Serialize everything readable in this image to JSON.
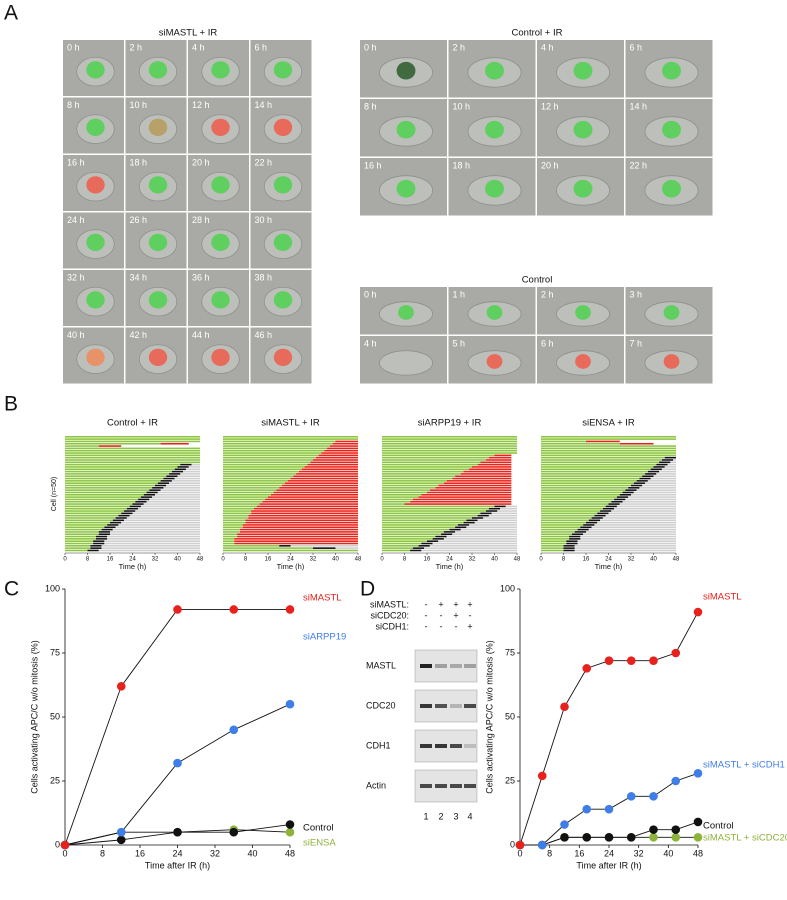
{
  "panel_labels": [
    "A",
    "B",
    "C",
    "D"
  ],
  "panel_a": [
    {
      "title": "siMASTL + IR",
      "frames": [
        "0 h",
        "2 h",
        "4 h",
        "6 h",
        "8 h",
        "10 h",
        "12 h",
        "14 h",
        "16 h",
        "18 h",
        "20 h",
        "22 h",
        "24 h",
        "26 h",
        "28 h",
        "30 h",
        "32 h",
        "34 h",
        "36 h",
        "38 h",
        "40 h",
        "42 h",
        "44 h",
        "46 h"
      ]
    },
    {
      "title": "Control + IR",
      "frames": [
        "0 h",
        "2 h",
        "4 h",
        "6 h",
        "8 h",
        "10 h",
        "12 h",
        "14 h",
        "16 h",
        "18 h",
        "20 h",
        "22 h"
      ]
    },
    {
      "title": "Control",
      "frames": [
        "0 h",
        "1 h",
        "2 h",
        "3 h",
        "4 h",
        "5 h",
        "6 h",
        "7 h"
      ]
    }
  ],
  "panel_b": {
    "xlim": [
      0,
      48
    ],
    "xticks": [
      0,
      8,
      16,
      24,
      32,
      40,
      48
    ],
    "xlabel": "Time (h)",
    "ylabel": "Cell (n=50)",
    "panels": [
      {
        "title": "Control + IR",
        "rows": [
          [
            48
          ],
          [
            48
          ],
          [
            48
          ],
          [
            34,
            44,
            "red"
          ],
          [
            12,
            20,
            "red"
          ],
          [
            48
          ],
          [
            48
          ],
          [
            48
          ],
          [
            48
          ],
          [
            48
          ],
          [
            48
          ],
          [
            48
          ],
          [
            41,
            45,
            "black"
          ],
          [
            40,
            44,
            "black"
          ],
          [
            39,
            43,
            "black"
          ],
          [
            38,
            42,
            "black"
          ],
          [
            37,
            41,
            "black"
          ],
          [
            36,
            40,
            "black"
          ],
          [
            35,
            39,
            "black"
          ],
          [
            34,
            38,
            "black"
          ],
          [
            33,
            37,
            "black"
          ],
          [
            32,
            36,
            "black"
          ],
          [
            31,
            35,
            "black"
          ],
          [
            30,
            34,
            "black"
          ],
          [
            29,
            33,
            "black"
          ],
          [
            28,
            32,
            "black"
          ],
          [
            27,
            31,
            "black"
          ],
          [
            26,
            30,
            "black"
          ],
          [
            25,
            29,
            "black"
          ],
          [
            24,
            28,
            "black"
          ],
          [
            23,
            27,
            "black"
          ],
          [
            22,
            26,
            "black"
          ],
          [
            21,
            25,
            "black"
          ],
          [
            20,
            24,
            "black"
          ],
          [
            19,
            23,
            "black"
          ],
          [
            18,
            22,
            "black"
          ],
          [
            17,
            21,
            "black"
          ],
          [
            16,
            20,
            "black"
          ],
          [
            15,
            19,
            "black"
          ],
          [
            14,
            18,
            "black"
          ],
          [
            13,
            17,
            "black"
          ],
          [
            12,
            16,
            "black"
          ],
          [
            12,
            16,
            "black"
          ],
          [
            11,
            15,
            "black"
          ],
          [
            11,
            15,
            "black"
          ],
          [
            10,
            14,
            "black"
          ],
          [
            10,
            14,
            "black"
          ],
          [
            9,
            13,
            "black"
          ],
          [
            9,
            13,
            "black"
          ],
          [
            8,
            12,
            "black"
          ]
        ]
      },
      {
        "title": "siMASTL + IR",
        "rows": [
          [
            48
          ],
          [
            48
          ],
          [
            40,
            48,
            "red"
          ],
          [
            39,
            48,
            "red"
          ],
          [
            38,
            48,
            "red"
          ],
          [
            37,
            48,
            "red"
          ],
          [
            36,
            48,
            "red"
          ],
          [
            35,
            48,
            "red"
          ],
          [
            34,
            48,
            "red"
          ],
          [
            33,
            48,
            "red"
          ],
          [
            32,
            48,
            "red"
          ],
          [
            31,
            48,
            "red"
          ],
          [
            30,
            48,
            "red"
          ],
          [
            29,
            48,
            "red"
          ],
          [
            28,
            48,
            "red"
          ],
          [
            27,
            48,
            "red"
          ],
          [
            26,
            48,
            "red"
          ],
          [
            25,
            48,
            "red"
          ],
          [
            24,
            48,
            "red"
          ],
          [
            23,
            48,
            "red"
          ],
          [
            22,
            48,
            "red"
          ],
          [
            21,
            48,
            "red"
          ],
          [
            20,
            48,
            "red"
          ],
          [
            19,
            48,
            "red"
          ],
          [
            18,
            48,
            "red"
          ],
          [
            17,
            48,
            "red"
          ],
          [
            16,
            48,
            "red"
          ],
          [
            15,
            48,
            "red"
          ],
          [
            14,
            48,
            "red"
          ],
          [
            13,
            48,
            "red"
          ],
          [
            12,
            48,
            "red"
          ],
          [
            11,
            48,
            "red"
          ],
          [
            10,
            48,
            "red"
          ],
          [
            10,
            48,
            "red"
          ],
          [
            9,
            48,
            "red"
          ],
          [
            9,
            48,
            "red"
          ],
          [
            8,
            48,
            "red"
          ],
          [
            8,
            48,
            "red"
          ],
          [
            7,
            48,
            "red"
          ],
          [
            7,
            48,
            "red"
          ],
          [
            6,
            48,
            "red"
          ],
          [
            6,
            48,
            "red"
          ],
          [
            5,
            48,
            "red"
          ],
          [
            5,
            48,
            "red"
          ],
          [
            4,
            48,
            "red"
          ],
          [
            4,
            48,
            "red"
          ],
          [
            4,
            48,
            "red"
          ],
          [
            20,
            24,
            "black"
          ],
          [
            32,
            40,
            "black"
          ],
          [
            48
          ]
        ]
      },
      {
        "title": "siARPP19 + IR",
        "rows": [
          [
            48
          ],
          [
            48
          ],
          [
            48
          ],
          [
            48
          ],
          [
            48
          ],
          [
            48
          ],
          [
            48
          ],
          [
            48
          ],
          [
            40,
            46,
            "red"
          ],
          [
            38,
            46,
            "red"
          ],
          [
            37,
            46,
            "red"
          ],
          [
            35,
            46,
            "red"
          ],
          [
            34,
            46,
            "red"
          ],
          [
            32,
            46,
            "red"
          ],
          [
            31,
            46,
            "red"
          ],
          [
            29,
            46,
            "red"
          ],
          [
            28,
            46,
            "red"
          ],
          [
            26,
            46,
            "red"
          ],
          [
            25,
            46,
            "red"
          ],
          [
            23,
            46,
            "red"
          ],
          [
            22,
            46,
            "red"
          ],
          [
            20,
            46,
            "red"
          ],
          [
            19,
            46,
            "red"
          ],
          [
            17,
            46,
            "red"
          ],
          [
            16,
            46,
            "red"
          ],
          [
            14,
            46,
            "red"
          ],
          [
            13,
            46,
            "red"
          ],
          [
            11,
            46,
            "red"
          ],
          [
            10,
            46,
            "red"
          ],
          [
            8,
            46,
            "red"
          ],
          [
            40,
            44,
            "black"
          ],
          [
            38,
            42,
            "black"
          ],
          [
            37,
            41,
            "black"
          ],
          [
            35,
            39,
            "black"
          ],
          [
            34,
            38,
            "black"
          ],
          [
            32,
            36,
            "black"
          ],
          [
            30,
            34,
            "black"
          ],
          [
            29,
            33,
            "black"
          ],
          [
            27,
            31,
            "black"
          ],
          [
            26,
            30,
            "black"
          ],
          [
            24,
            28,
            "black"
          ],
          [
            22,
            26,
            "black"
          ],
          [
            21,
            25,
            "black"
          ],
          [
            19,
            23,
            "black"
          ],
          [
            18,
            22,
            "black"
          ],
          [
            16,
            20,
            "black"
          ],
          [
            14,
            18,
            "black"
          ],
          [
            13,
            17,
            "black"
          ],
          [
            11,
            15,
            "black"
          ],
          [
            10,
            14,
            "black"
          ]
        ]
      },
      {
        "title": "siENSA + IR",
        "rows": [
          [
            48
          ],
          [
            48
          ],
          [
            16,
            28,
            "red"
          ],
          [
            28,
            40,
            "red"
          ],
          [
            48
          ],
          [
            48
          ],
          [
            48
          ],
          [
            48
          ],
          [
            48
          ],
          [
            44,
            48,
            "black"
          ],
          [
            43,
            47,
            "black"
          ],
          [
            42,
            46,
            "black"
          ],
          [
            41,
            45,
            "black"
          ],
          [
            40,
            44,
            "black"
          ],
          [
            39,
            43,
            "black"
          ],
          [
            38,
            42,
            "black"
          ],
          [
            37,
            41,
            "black"
          ],
          [
            36,
            40,
            "black"
          ],
          [
            35,
            39,
            "black"
          ],
          [
            34,
            38,
            "black"
          ],
          [
            33,
            37,
            "black"
          ],
          [
            32,
            36,
            "black"
          ],
          [
            31,
            35,
            "black"
          ],
          [
            30,
            34,
            "black"
          ],
          [
            29,
            33,
            "black"
          ],
          [
            28,
            32,
            "black"
          ],
          [
            27,
            31,
            "black"
          ],
          [
            26,
            30,
            "black"
          ],
          [
            25,
            29,
            "black"
          ],
          [
            24,
            28,
            "black"
          ],
          [
            23,
            27,
            "black"
          ],
          [
            22,
            26,
            "black"
          ],
          [
            21,
            25,
            "black"
          ],
          [
            20,
            24,
            "black"
          ],
          [
            19,
            23,
            "black"
          ],
          [
            18,
            22,
            "black"
          ],
          [
            17,
            21,
            "black"
          ],
          [
            16,
            20,
            "black"
          ],
          [
            15,
            19,
            "black"
          ],
          [
            14,
            18,
            "black"
          ],
          [
            13,
            17,
            "black"
          ],
          [
            12,
            16,
            "black"
          ],
          [
            11,
            15,
            "black"
          ],
          [
            10,
            14,
            "black"
          ],
          [
            10,
            14,
            "black"
          ],
          [
            9,
            13,
            "black"
          ],
          [
            9,
            13,
            "black"
          ],
          [
            8,
            12,
            "black"
          ],
          [
            8,
            12,
            "black"
          ],
          [
            8,
            12,
            "black"
          ]
        ]
      }
    ]
  },
  "chart_data": [
    {
      "type": "line",
      "xlabel": "Time after IR (h)",
      "ylabel": "Cells activating APC/C w/o mitosis (%)",
      "x": [
        0,
        12,
        24,
        36,
        48
      ],
      "xlim": [
        0,
        48
      ],
      "xticks": [
        0,
        8,
        16,
        24,
        32,
        40,
        48
      ],
      "ylim": [
        0,
        100
      ],
      "yticks": [
        0,
        25,
        50,
        75,
        100
      ],
      "series": [
        {
          "name": "siMASTL",
          "color": "#e8211c",
          "values": [
            0,
            62,
            92,
            92,
            92
          ]
        },
        {
          "name": "siARPP19",
          "color": "#3f7ee8",
          "values": [
            0,
            5,
            32,
            45,
            55
          ]
        },
        {
          "name": "Control",
          "color": "#111111",
          "values": [
            0,
            2,
            5,
            5,
            8
          ]
        },
        {
          "name": "siENSA",
          "color": "#8db33a",
          "values": [
            0,
            5,
            5,
            6,
            5
          ]
        }
      ]
    },
    {
      "type": "line",
      "xlabel": "Time after IR (h)",
      "ylabel": "Cells activating APC/C w/o mitosis (%)",
      "x": [
        0,
        6,
        12,
        18,
        24,
        30,
        36,
        42,
        48
      ],
      "xlim": [
        0,
        48
      ],
      "xticks": [
        0,
        8,
        16,
        24,
        32,
        40,
        48
      ],
      "ylim": [
        0,
        100
      ],
      "yticks": [
        0,
        25,
        50,
        75,
        100
      ],
      "series": [
        {
          "name": "siMASTL",
          "color": "#e8211c",
          "values": [
            0,
            27,
            54,
            69,
            72,
            72,
            72,
            75,
            91
          ]
        },
        {
          "name": "siMASTL + siCDH1",
          "color": "#3f7ee8",
          "values": [
            0,
            0,
            8,
            14,
            14,
            19,
            19,
            25,
            28
          ]
        },
        {
          "name": "Control",
          "color": "#111111",
          "values": [
            0,
            0,
            3,
            3,
            3,
            3,
            6,
            6,
            9
          ]
        },
        {
          "name": "siMASTL + siCDC20",
          "color": "#8db33a",
          "values": [
            0,
            0,
            3,
            3,
            3,
            3,
            3,
            3,
            3
          ]
        }
      ]
    }
  ],
  "blot": {
    "conditions": [
      "siMASTL:",
      "siCDC20:",
      "siCDH1:"
    ],
    "signs": [
      [
        "-",
        "+",
        "+",
        "+"
      ],
      [
        "-",
        "-",
        "+",
        "-"
      ],
      [
        "-",
        "-",
        "-",
        "+"
      ]
    ],
    "bands": [
      "MASTL",
      "CDC20",
      "CDH1",
      "Actin"
    ],
    "lanes": [
      "1",
      "2",
      "3",
      "4"
    ]
  }
}
